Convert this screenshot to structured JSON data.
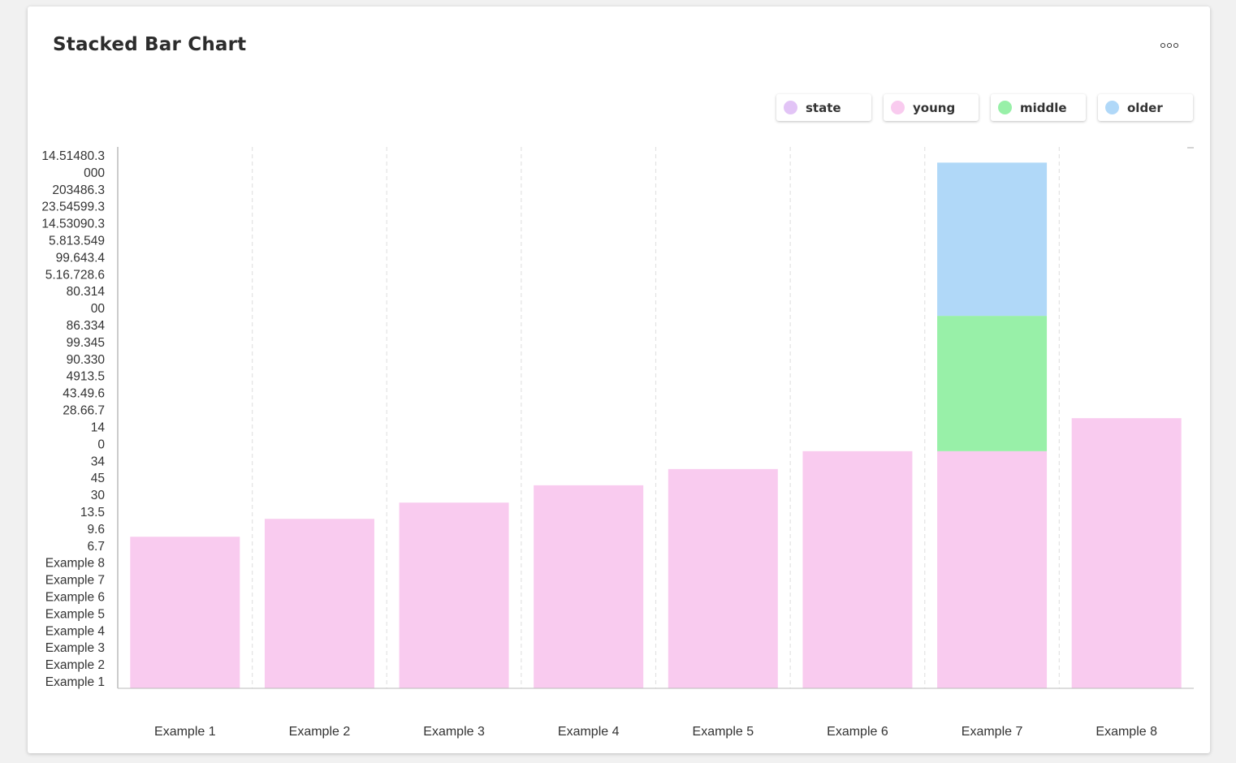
{
  "card": {
    "title": "Stacked Bar Chart",
    "menu_icon": "more-horizontal-icon"
  },
  "chart_data": {
    "type": "bar",
    "stacked": true,
    "title": "Stacked Bar Chart",
    "xlabel": "",
    "ylabel": "",
    "categories": [
      "Example 1",
      "Example 2",
      "Example 3",
      "Example 4",
      "Example 5",
      "Example 6",
      "Example 7",
      "Example 8"
    ],
    "y_tick_labels": [
      "14.51480.3",
      "000",
      "203486.3",
      "23.54599.3",
      "14.53090.3",
      "5.813.549",
      "99.643.4",
      "5.16.728.6",
      "80.314",
      "00",
      "86.334",
      "99.345",
      "90.330",
      "4913.5",
      "43.49.6",
      "28.66.7",
      "14",
      "0",
      "34",
      "45",
      "30",
      "13.5",
      "9.6",
      "6.7",
      "Example 8",
      "Example 7",
      "Example 6",
      "Example 5",
      "Example 4",
      "Example 3",
      "Example 2",
      "Example 1"
    ],
    "ylim": [
      0,
      100
    ],
    "grid": "vertical dashed",
    "legend_position": "top-right",
    "series": [
      {
        "name": "state",
        "color": "#e2c4f6",
        "values": [
          0,
          0,
          0,
          0,
          0,
          0,
          0,
          0
        ]
      },
      {
        "name": "young",
        "color": "#f9cbef",
        "values": [
          28,
          31.3,
          34.3,
          37.5,
          40.5,
          43.8,
          43.8,
          49.9
        ]
      },
      {
        "name": "middle",
        "color": "#98f0a8",
        "values": [
          0,
          0,
          0,
          0,
          0,
          0,
          25,
          0
        ]
      },
      {
        "name": "older",
        "color": "#b0d8f8",
        "values": [
          0,
          0,
          0,
          0,
          0,
          0,
          28.3,
          0
        ]
      }
    ]
  }
}
